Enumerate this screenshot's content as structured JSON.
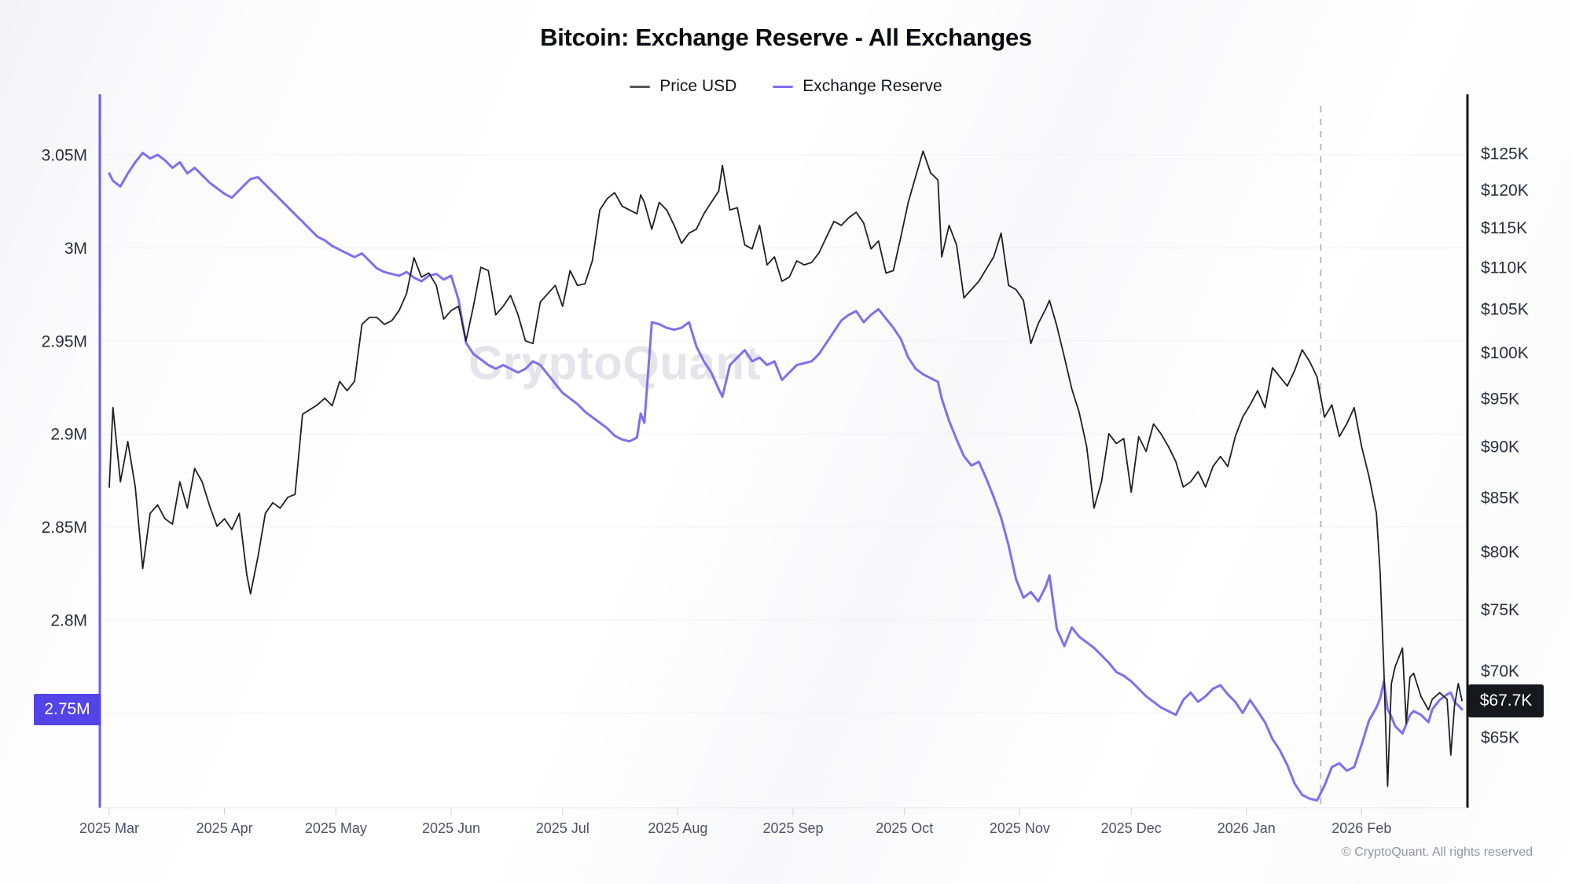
{
  "title": "Bitcoin: Exchange Reserve - All Exchanges",
  "watermark": "CryptoQuant",
  "footer": "© CryptoQuant. All rights reserved",
  "legend": [
    {
      "label": "Price USD",
      "color": "#55565c"
    },
    {
      "label": "Exchange Reserve",
      "color": "#7e6ff0"
    }
  ],
  "left_badge": {
    "label": "2.75M",
    "value": 2.752,
    "color": "#5344e7"
  },
  "right_badge": {
    "label": "$67.7K",
    "value": 67.7,
    "color": "#17181d"
  },
  "axes": {
    "left_ticks": [
      {
        "label": "3.05M",
        "value": 3.05
      },
      {
        "label": "3M",
        "value": 3.0
      },
      {
        "label": "2.95M",
        "value": 2.95
      },
      {
        "label": "2.9M",
        "value": 2.9
      },
      {
        "label": "2.85M",
        "value": 2.85
      },
      {
        "label": "2.8M",
        "value": 2.8
      },
      {
        "label": "2.75M",
        "value": 2.75
      }
    ],
    "right_ticks": [
      {
        "label": "$125K",
        "value": 125
      },
      {
        "label": "$120K",
        "value": 120
      },
      {
        "label": "$115K",
        "value": 115
      },
      {
        "label": "$110K",
        "value": 110
      },
      {
        "label": "$105K",
        "value": 105
      },
      {
        "label": "$100K",
        "value": 100
      },
      {
        "label": "$95K",
        "value": 95
      },
      {
        "label": "$90K",
        "value": 90
      },
      {
        "label": "$85K",
        "value": 85
      },
      {
        "label": "$80K",
        "value": 80
      },
      {
        "label": "$75K",
        "value": 75
      },
      {
        "label": "$70K",
        "value": 70
      },
      {
        "label": "$65K",
        "value": 65
      }
    ],
    "x_ticks": [
      {
        "label": "2025 Mar",
        "date": "2025-03-01"
      },
      {
        "label": "2025 Apr",
        "date": "2025-04-01"
      },
      {
        "label": "2025 May",
        "date": "2025-05-01"
      },
      {
        "label": "2025 Jun",
        "date": "2025-06-01"
      },
      {
        "label": "2025 Jul",
        "date": "2025-07-01"
      },
      {
        "label": "2025 Aug",
        "date": "2025-08-01"
      },
      {
        "label": "2025 Sep",
        "date": "2025-09-01"
      },
      {
        "label": "2025 Oct",
        "date": "2025-10-01"
      },
      {
        "label": "2025 Nov",
        "date": "2025-11-01"
      },
      {
        "label": "2025 Dec",
        "date": "2025-12-01"
      },
      {
        "label": "2026 Jan",
        "date": "2026-01-01"
      },
      {
        "label": "2026 Feb",
        "date": "2026-02-01"
      }
    ]
  },
  "event_marker": {
    "date": "2026-01-21",
    "style": "dashed"
  },
  "chart_data": {
    "type": "line",
    "title": "Bitcoin: Exchange Reserve - All Exchanges",
    "x_range": [
      "2025-03-01",
      "2026-02-28"
    ],
    "left_axis": {
      "label": "Exchange Reserve (BTC)",
      "scale": "linear",
      "ylim": [
        2.7,
        3.06
      ],
      "unit": "M BTC"
    },
    "right_axis": {
      "label": "Price USD",
      "scale": "log",
      "ylim": [
        61,
        128
      ],
      "unit": "K USD"
    },
    "grid": "horizontal-left-axis",
    "legend_position": "top-center",
    "series": [
      {
        "name": "Price USD",
        "axis": "right",
        "color": "#1f2026"
      },
      {
        "name": "Exchange Reserve",
        "axis": "left",
        "color": "#7e6ff0"
      }
    ],
    "points": [
      [
        "2025-03-01",
        86.0,
        3.04
      ],
      [
        "2025-03-02",
        94.0,
        3.036
      ],
      [
        "2025-03-04",
        86.5,
        3.033
      ],
      [
        "2025-03-06",
        90.5,
        3.04
      ],
      [
        "2025-03-08",
        86.0,
        3.046
      ],
      [
        "2025-03-10",
        78.5,
        3.051
      ],
      [
        "2025-03-12",
        83.5,
        3.048
      ],
      [
        "2025-03-14",
        84.3,
        3.05
      ],
      [
        "2025-03-16",
        83.0,
        3.047
      ],
      [
        "2025-03-18",
        82.5,
        3.043
      ],
      [
        "2025-03-20",
        86.5,
        3.046
      ],
      [
        "2025-03-22",
        84.0,
        3.04
      ],
      [
        "2025-03-24",
        87.8,
        3.043
      ],
      [
        "2025-03-26",
        86.5,
        3.039
      ],
      [
        "2025-03-28",
        84.2,
        3.035
      ],
      [
        "2025-03-30",
        82.3,
        3.032
      ],
      [
        "2025-04-01",
        83.0,
        3.029
      ],
      [
        "2025-04-03",
        82.0,
        3.027
      ],
      [
        "2025-04-05",
        83.5,
        3.031
      ],
      [
        "2025-04-07",
        78.0,
        3.035
      ],
      [
        "2025-04-08",
        76.3,
        3.037
      ],
      [
        "2025-04-10",
        79.5,
        3.038
      ],
      [
        "2025-04-12",
        83.5,
        3.034
      ],
      [
        "2025-04-14",
        84.5,
        3.03
      ],
      [
        "2025-04-16",
        84.0,
        3.026
      ],
      [
        "2025-04-18",
        85.0,
        3.022
      ],
      [
        "2025-04-20",
        85.3,
        3.018
      ],
      [
        "2025-04-22",
        93.3,
        3.014
      ],
      [
        "2025-04-24",
        93.8,
        3.01
      ],
      [
        "2025-04-26",
        94.3,
        3.006
      ],
      [
        "2025-04-28",
        95.0,
        3.004
      ],
      [
        "2025-04-30",
        94.2,
        3.001
      ],
      [
        "2025-05-02",
        96.8,
        2.999
      ],
      [
        "2025-05-04",
        95.8,
        2.997
      ],
      [
        "2025-05-06",
        96.8,
        2.995
      ],
      [
        "2025-05-08",
        103.2,
        2.997
      ],
      [
        "2025-05-10",
        104.0,
        2.993
      ],
      [
        "2025-05-12",
        104.0,
        2.989
      ],
      [
        "2025-05-14",
        103.2,
        2.987
      ],
      [
        "2025-05-16",
        103.6,
        2.986
      ],
      [
        "2025-05-18",
        104.8,
        2.985
      ],
      [
        "2025-05-20",
        106.8,
        2.987
      ],
      [
        "2025-05-22",
        111.2,
        2.984
      ],
      [
        "2025-05-24",
        108.8,
        2.982
      ],
      [
        "2025-05-26",
        109.3,
        2.985
      ],
      [
        "2025-05-28",
        107.8,
        2.986
      ],
      [
        "2025-05-30",
        103.8,
        2.983
      ],
      [
        "2025-06-01",
        104.8,
        2.985
      ],
      [
        "2025-06-03",
        105.3,
        2.972
      ],
      [
        "2025-06-05",
        101.3,
        2.949
      ],
      [
        "2025-06-07",
        105.3,
        2.943
      ],
      [
        "2025-06-09",
        110.0,
        2.94
      ],
      [
        "2025-06-11",
        109.6,
        2.937
      ],
      [
        "2025-06-13",
        104.3,
        2.935
      ],
      [
        "2025-06-15",
        105.3,
        2.937
      ],
      [
        "2025-06-17",
        106.6,
        2.935
      ],
      [
        "2025-06-19",
        104.3,
        2.933
      ],
      [
        "2025-06-21",
        101.3,
        2.935
      ],
      [
        "2025-06-23",
        101.0,
        2.939
      ],
      [
        "2025-06-25",
        105.8,
        2.937
      ],
      [
        "2025-06-27",
        106.8,
        2.932
      ],
      [
        "2025-06-29",
        107.8,
        2.927
      ],
      [
        "2025-07-01",
        105.3,
        2.922
      ],
      [
        "2025-07-03",
        109.6,
        2.919
      ],
      [
        "2025-07-05",
        107.8,
        2.916
      ],
      [
        "2025-07-07",
        108.0,
        2.912
      ],
      [
        "2025-07-09",
        110.8,
        2.909
      ],
      [
        "2025-07-11",
        117.3,
        2.906
      ],
      [
        "2025-07-13",
        118.8,
        2.903
      ],
      [
        "2025-07-15",
        119.6,
        2.899
      ],
      [
        "2025-07-17",
        117.8,
        2.897
      ],
      [
        "2025-07-19",
        117.3,
        2.896
      ],
      [
        "2025-07-21",
        116.8,
        2.898
      ],
      [
        "2025-07-22",
        119.3,
        2.911
      ],
      [
        "2025-07-23",
        118.3,
        2.906
      ],
      [
        "2025-07-25",
        114.8,
        2.96
      ],
      [
        "2025-07-27",
        118.3,
        2.959
      ],
      [
        "2025-07-29",
        117.3,
        2.957
      ],
      [
        "2025-07-31",
        115.3,
        2.956
      ],
      [
        "2025-08-02",
        113.0,
        2.957
      ],
      [
        "2025-08-04",
        114.3,
        2.96
      ],
      [
        "2025-08-06",
        114.8,
        2.947
      ],
      [
        "2025-08-08",
        116.8,
        2.939
      ],
      [
        "2025-08-10",
        118.3,
        2.933
      ],
      [
        "2025-08-12",
        119.8,
        2.924
      ],
      [
        "2025-08-13",
        123.3,
        2.92
      ],
      [
        "2025-08-15",
        117.3,
        2.937
      ],
      [
        "2025-08-17",
        117.6,
        2.941
      ],
      [
        "2025-08-19",
        112.8,
        2.945
      ],
      [
        "2025-08-21",
        112.3,
        2.939
      ],
      [
        "2025-08-23",
        115.3,
        2.941
      ],
      [
        "2025-08-25",
        110.3,
        2.937
      ],
      [
        "2025-08-27",
        111.3,
        2.939
      ],
      [
        "2025-08-29",
        108.3,
        2.929
      ],
      [
        "2025-08-31",
        108.8,
        2.933
      ],
      [
        "2025-09-02",
        110.8,
        2.937
      ],
      [
        "2025-09-04",
        110.3,
        2.938
      ],
      [
        "2025-09-06",
        110.6,
        2.939
      ],
      [
        "2025-09-08",
        111.8,
        2.943
      ],
      [
        "2025-09-10",
        113.8,
        2.949
      ],
      [
        "2025-09-12",
        115.8,
        2.955
      ],
      [
        "2025-09-14",
        115.3,
        2.961
      ],
      [
        "2025-09-16",
        116.3,
        2.964
      ],
      [
        "2025-09-18",
        117.0,
        2.966
      ],
      [
        "2025-09-20",
        115.6,
        2.96
      ],
      [
        "2025-09-22",
        112.3,
        2.964
      ],
      [
        "2025-09-24",
        113.3,
        2.967
      ],
      [
        "2025-09-26",
        109.3,
        2.962
      ],
      [
        "2025-09-28",
        109.6,
        2.957
      ],
      [
        "2025-09-30",
        113.8,
        2.951
      ],
      [
        "2025-10-02",
        118.3,
        2.941
      ],
      [
        "2025-10-04",
        121.8,
        2.935
      ],
      [
        "2025-10-06",
        125.3,
        2.932
      ],
      [
        "2025-10-08",
        122.3,
        2.93
      ],
      [
        "2025-10-10",
        121.3,
        2.928
      ],
      [
        "2025-10-11",
        111.3,
        2.919
      ],
      [
        "2025-10-13",
        115.3,
        2.907
      ],
      [
        "2025-10-15",
        112.8,
        2.897
      ],
      [
        "2025-10-17",
        106.3,
        2.888
      ],
      [
        "2025-10-19",
        107.3,
        2.883
      ],
      [
        "2025-10-21",
        108.3,
        2.885
      ],
      [
        "2025-10-23",
        109.8,
        2.876
      ],
      [
        "2025-10-25",
        111.3,
        2.866
      ],
      [
        "2025-10-27",
        114.3,
        2.855
      ],
      [
        "2025-10-29",
        107.8,
        2.84
      ],
      [
        "2025-10-31",
        107.3,
        2.822
      ],
      [
        "2025-11-02",
        106.0,
        2.812
      ],
      [
        "2025-11-04",
        101.0,
        2.815
      ],
      [
        "2025-11-06",
        103.3,
        2.81
      ],
      [
        "2025-11-08",
        105.0,
        2.818
      ],
      [
        "2025-11-09",
        106.0,
        2.824
      ],
      [
        "2025-11-11",
        103.0,
        2.795
      ],
      [
        "2025-11-13",
        99.5,
        2.786
      ],
      [
        "2025-11-15",
        96.0,
        2.796
      ],
      [
        "2025-11-17",
        93.5,
        2.791
      ],
      [
        "2025-11-19",
        90.0,
        2.788
      ],
      [
        "2025-11-21",
        84.0,
        2.785
      ],
      [
        "2025-11-23",
        86.5,
        2.781
      ],
      [
        "2025-11-25",
        91.3,
        2.777
      ],
      [
        "2025-11-27",
        90.3,
        2.772
      ],
      [
        "2025-11-29",
        90.8,
        2.77
      ],
      [
        "2025-12-01",
        85.5,
        2.767
      ],
      [
        "2025-12-03",
        91.0,
        2.763
      ],
      [
        "2025-12-05",
        89.5,
        2.759
      ],
      [
        "2025-12-07",
        92.3,
        2.756
      ],
      [
        "2025-12-09",
        91.3,
        2.753
      ],
      [
        "2025-12-11",
        90.0,
        2.751
      ],
      [
        "2025-12-13",
        88.5,
        2.749
      ],
      [
        "2025-12-15",
        86.0,
        2.757
      ],
      [
        "2025-12-17",
        86.5,
        2.761
      ],
      [
        "2025-12-19",
        87.5,
        2.756
      ],
      [
        "2025-12-21",
        86.0,
        2.759
      ],
      [
        "2025-12-23",
        88.0,
        2.763
      ],
      [
        "2025-12-25",
        89.0,
        2.765
      ],
      [
        "2025-12-27",
        88.0,
        2.76
      ],
      [
        "2025-12-29",
        91.0,
        2.756
      ],
      [
        "2025-12-31",
        93.0,
        2.75
      ],
      [
        "2026-01-02",
        94.3,
        2.757
      ],
      [
        "2026-01-04",
        95.8,
        2.751
      ],
      [
        "2026-01-06",
        94.0,
        2.745
      ],
      [
        "2026-01-08",
        98.3,
        2.736
      ],
      [
        "2026-01-10",
        97.3,
        2.73
      ],
      [
        "2026-01-12",
        96.3,
        2.722
      ],
      [
        "2026-01-14",
        98.0,
        2.712
      ],
      [
        "2026-01-16",
        100.3,
        2.706
      ],
      [
        "2026-01-18",
        99.0,
        2.704
      ],
      [
        "2026-01-20",
        97.3,
        2.703
      ],
      [
        "2026-01-22",
        93.0,
        2.711
      ],
      [
        "2026-01-24",
        94.3,
        2.721
      ],
      [
        "2026-01-26",
        91.0,
        2.723
      ],
      [
        "2026-01-28",
        92.3,
        2.719
      ],
      [
        "2026-01-30",
        94.0,
        2.721
      ],
      [
        "2026-02-01",
        90.0,
        2.733
      ],
      [
        "2026-02-03",
        87.0,
        2.746
      ],
      [
        "2026-02-05",
        83.5,
        2.753
      ],
      [
        "2026-02-06",
        78.0,
        2.758
      ],
      [
        "2026-02-07",
        70.0,
        2.767
      ],
      [
        "2026-02-08",
        61.5,
        2.752
      ],
      [
        "2026-02-09",
        69.0,
        2.748
      ],
      [
        "2026-02-10",
        70.3,
        2.743
      ],
      [
        "2026-02-12",
        71.8,
        2.739
      ],
      [
        "2026-02-13",
        66.0,
        2.744
      ],
      [
        "2026-02-14",
        69.5,
        2.749
      ],
      [
        "2026-02-15",
        69.8,
        2.751
      ],
      [
        "2026-02-17",
        68.0,
        2.749
      ],
      [
        "2026-02-19",
        67.0,
        2.745
      ],
      [
        "2026-02-20",
        67.8,
        2.752
      ],
      [
        "2026-02-22",
        68.3,
        2.757
      ],
      [
        "2026-02-24",
        67.8,
        2.76
      ],
      [
        "2026-02-25",
        63.7,
        2.761
      ],
      [
        "2026-02-26",
        67.3,
        2.756
      ],
      [
        "2026-02-27",
        69.0,
        2.754
      ],
      [
        "2026-02-28",
        67.7,
        2.752
      ]
    ]
  }
}
